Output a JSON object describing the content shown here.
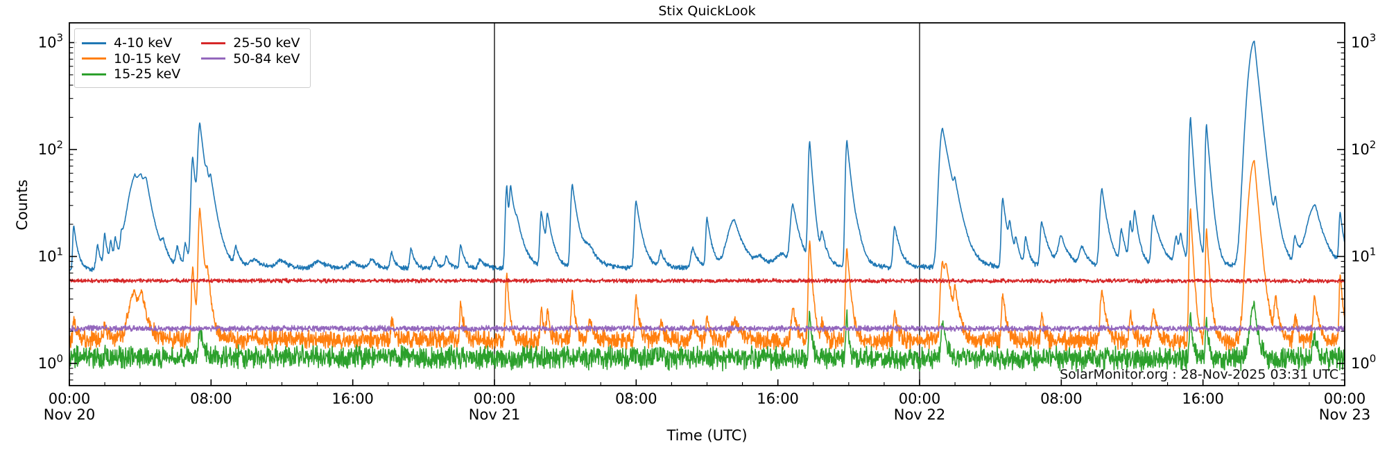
{
  "figure": {
    "title": "Stix QuickLook",
    "xlabel": "Time (UTC)",
    "ylabel": "Counts",
    "watermark": "SolarMonitor.org : 28-Nov-2025 03:31 UTC"
  },
  "legend": {
    "entries": [
      {
        "label": "4-10 keV",
        "color": "#1f77b4"
      },
      {
        "label": "10-15 keV",
        "color": "#ff7f0e"
      },
      {
        "label": "15-25 keV",
        "color": "#2ca02c"
      },
      {
        "label": "25-50 keV",
        "color": "#d62728"
      },
      {
        "label": "50-84 keV",
        "color": "#9467bd"
      }
    ]
  },
  "chart_data": {
    "type": "line",
    "title": "Stix QuickLook",
    "xlabel": "Time (UTC)",
    "ylabel": "Counts",
    "x_axis": {
      "start_hours": 0,
      "end_hours": 72,
      "minor_tick_hours": 2,
      "ticks": [
        {
          "t": 0,
          "label": "00:00",
          "date": "Nov 20"
        },
        {
          "t": 8,
          "label": "08:00"
        },
        {
          "t": 16,
          "label": "16:00"
        },
        {
          "t": 24,
          "label": "00:00",
          "date": "Nov 21"
        },
        {
          "t": 32,
          "label": "08:00"
        },
        {
          "t": 40,
          "label": "16:00"
        },
        {
          "t": 48,
          "label": "00:00",
          "date": "Nov 22"
        },
        {
          "t": 56,
          "label": "08:00"
        },
        {
          "t": 64,
          "label": "16:00"
        },
        {
          "t": 72,
          "label": "00:00",
          "date": "Nov 23"
        }
      ]
    },
    "y_axis": {
      "scale": "log",
      "min": 0.62,
      "max": 1530,
      "major_exponents": [
        0,
        1,
        2,
        3
      ],
      "mantissa_base": "10"
    },
    "day_separators_hours": [
      24,
      48
    ],
    "series": [
      {
        "name": "4-10 keV",
        "color": "#1f77b4",
        "baseline_start": 7.55,
        "baseline_end": 8.1,
        "noise_sigma": 0.011,
        "peaks": [
          [
            0.25,
            20,
            0.05,
            0.2
          ],
          [
            1.6,
            13,
            0.08,
            0.2
          ],
          [
            2.0,
            16,
            0.06,
            0.18
          ],
          [
            2.35,
            13,
            0.06,
            0.15
          ],
          [
            2.6,
            14,
            0.06,
            0.18
          ],
          [
            2.95,
            13,
            0.06,
            0.15
          ],
          [
            3.7,
            52,
            0.35,
            0.3
          ],
          [
            4.05,
            42,
            0.2,
            0.3
          ],
          [
            4.35,
            36,
            0.15,
            0.45
          ],
          [
            5.3,
            11,
            0.08,
            0.2
          ],
          [
            6.1,
            12,
            0.08,
            0.2
          ],
          [
            6.55,
            13,
            0.06,
            0.2
          ],
          [
            6.97,
            85,
            0.08,
            0.22
          ],
          [
            7.37,
            165,
            0.09,
            0.3
          ],
          [
            7.78,
            26,
            0.06,
            0.3
          ],
          [
            7.98,
            28,
            0.06,
            0.4
          ],
          [
            9.4,
            12,
            0.08,
            0.25
          ],
          [
            10.5,
            9.5,
            0.3,
            0.5
          ],
          [
            12.0,
            9.3,
            0.3,
            0.5
          ],
          [
            14.1,
            9.3,
            0.3,
            0.5
          ],
          [
            16.0,
            9,
            0.2,
            0.4
          ],
          [
            17.1,
            9.5,
            0.15,
            0.3
          ],
          [
            18.2,
            11,
            0.08,
            0.2
          ],
          [
            19.3,
            12,
            0.07,
            0.2
          ],
          [
            20.6,
            10,
            0.1,
            0.2
          ],
          [
            21.3,
            10,
            0.1,
            0.2
          ],
          [
            22.1,
            13,
            0.06,
            0.2
          ],
          [
            23.2,
            9.5,
            0.1,
            0.3
          ],
          [
            24.7,
            46,
            0.07,
            0.12
          ],
          [
            24.92,
            40,
            0.06,
            0.35
          ],
          [
            25.3,
            12,
            0.1,
            0.4
          ],
          [
            26.65,
            26,
            0.07,
            0.25
          ],
          [
            27.0,
            21,
            0.06,
            0.3
          ],
          [
            28.4,
            47,
            0.08,
            0.3
          ],
          [
            29.4,
            11.5,
            0.3,
            0.5
          ],
          [
            32.0,
            33,
            0.08,
            0.3
          ],
          [
            33.4,
            11,
            0.1,
            0.25
          ],
          [
            35.2,
            12,
            0.1,
            0.3
          ],
          [
            36.0,
            23,
            0.06,
            0.25
          ],
          [
            37.55,
            22,
            0.35,
            0.5
          ],
          [
            39.0,
            9.5,
            0.2,
            0.4
          ],
          [
            40.3,
            10.5,
            0.4,
            0.5
          ],
          [
            40.85,
            30,
            0.12,
            0.35
          ],
          [
            41.8,
            117,
            0.07,
            0.18
          ],
          [
            42.5,
            15,
            0.07,
            0.3
          ],
          [
            43.9,
            121,
            0.07,
            0.25
          ],
          [
            44.6,
            10.5,
            0.2,
            0.4
          ],
          [
            46.6,
            19,
            0.08,
            0.3
          ],
          [
            49.3,
            158,
            0.15,
            0.45
          ],
          [
            50.0,
            23,
            0.06,
            0.3
          ],
          [
            52.7,
            35,
            0.07,
            0.25
          ],
          [
            53.1,
            16,
            0.06,
            0.2
          ],
          [
            53.45,
            12.5,
            0.06,
            0.2
          ],
          [
            54.0,
            14.5,
            0.07,
            0.2
          ],
          [
            54.9,
            21,
            0.08,
            0.35
          ],
          [
            56.0,
            15,
            0.15,
            0.4
          ],
          [
            57.2,
            12,
            0.15,
            0.3
          ],
          [
            58.3,
            43,
            0.1,
            0.3
          ],
          [
            59.4,
            17,
            0.08,
            0.25
          ],
          [
            59.9,
            20,
            0.07,
            0.2
          ],
          [
            60.15,
            23,
            0.06,
            0.25
          ],
          [
            61.2,
            24,
            0.09,
            0.4
          ],
          [
            62.5,
            14.5,
            0.1,
            0.2
          ],
          [
            62.75,
            14,
            0.07,
            0.2
          ],
          [
            63.3,
            198,
            0.07,
            0.16
          ],
          [
            64.2,
            170,
            0.06,
            0.2
          ],
          [
            66.9,
            1030,
            0.28,
            0.27
          ],
          [
            68.1,
            24,
            0.07,
            0.3
          ],
          [
            69.2,
            14.5,
            0.08,
            0.25
          ],
          [
            70.35,
            30,
            0.4,
            0.45
          ],
          [
            71.75,
            25,
            0.06,
            0.2
          ]
        ]
      },
      {
        "name": "10-15 keV",
        "color": "#ff7f0e",
        "baseline_start": 1.68,
        "baseline_end": 1.62,
        "noise_sigma": 0.042,
        "peaks": [
          [
            0.25,
            2.6,
            0.05,
            0.15
          ],
          [
            2.0,
            2.4,
            0.05,
            0.15
          ],
          [
            3.7,
            4.6,
            0.3,
            0.3
          ],
          [
            4.1,
            3.8,
            0.15,
            0.3
          ],
          [
            6.97,
            8,
            0.06,
            0.15
          ],
          [
            7.37,
            28,
            0.07,
            0.2
          ],
          [
            7.8,
            5,
            0.06,
            0.2
          ],
          [
            18.2,
            2.6,
            0.05,
            0.15
          ],
          [
            22.1,
            3.6,
            0.05,
            0.15
          ],
          [
            24.7,
            7,
            0.06,
            0.12
          ],
          [
            26.65,
            3.3,
            0.05,
            0.12
          ],
          [
            27.0,
            3.2,
            0.05,
            0.12
          ],
          [
            28.4,
            4.7,
            0.06,
            0.15
          ],
          [
            29.4,
            2.5,
            0.1,
            0.2
          ],
          [
            32.0,
            4.2,
            0.06,
            0.15
          ],
          [
            33.4,
            2.4,
            0.06,
            0.15
          ],
          [
            35.2,
            2.6,
            0.06,
            0.15
          ],
          [
            36.0,
            2.9,
            0.05,
            0.15
          ],
          [
            37.6,
            2.5,
            0.2,
            0.3
          ],
          [
            40.85,
            3.3,
            0.08,
            0.2
          ],
          [
            41.8,
            14,
            0.06,
            0.14
          ],
          [
            42.5,
            2.4,
            0.06,
            0.15
          ],
          [
            43.9,
            12,
            0.06,
            0.18
          ],
          [
            46.6,
            3.0,
            0.06,
            0.15
          ],
          [
            49.3,
            9,
            0.1,
            0.3
          ],
          [
            49.5,
            5,
            0.06,
            0.3
          ],
          [
            50.0,
            4.2,
            0.05,
            0.2
          ],
          [
            52.7,
            4.5,
            0.06,
            0.18
          ],
          [
            54.9,
            2.8,
            0.06,
            0.15
          ],
          [
            58.3,
            5,
            0.08,
            0.2
          ],
          [
            59.9,
            3.0,
            0.06,
            0.15
          ],
          [
            61.2,
            3.3,
            0.07,
            0.2
          ],
          [
            63.3,
            28,
            0.06,
            0.13
          ],
          [
            64.2,
            18,
            0.05,
            0.15
          ],
          [
            66.9,
            79,
            0.25,
            0.22
          ],
          [
            68.1,
            4.1,
            0.06,
            0.2
          ],
          [
            69.2,
            2.8,
            0.06,
            0.15
          ],
          [
            70.3,
            4.3,
            0.07,
            0.2
          ],
          [
            71.75,
            7,
            0.05,
            0.15
          ]
        ]
      },
      {
        "name": "15-25 keV",
        "color": "#2ca02c",
        "baseline_start": 1.15,
        "baseline_end": 1.1,
        "noise_sigma": 0.05,
        "peaks": [
          [
            7.37,
            2.2,
            0.06,
            0.15
          ],
          [
            41.8,
            3.1,
            0.05,
            0.1
          ],
          [
            43.9,
            3.0,
            0.05,
            0.1
          ],
          [
            49.3,
            2.5,
            0.07,
            0.2
          ],
          [
            63.3,
            2.9,
            0.05,
            0.1
          ],
          [
            64.2,
            2.6,
            0.05,
            0.1
          ],
          [
            66.9,
            3.6,
            0.2,
            0.2
          ],
          [
            70.3,
            1.8,
            0.1,
            0.2
          ]
        ]
      },
      {
        "name": "25-50 keV",
        "color": "#d62728",
        "baseline_start": 5.95,
        "baseline_end": 5.9,
        "noise_sigma": 0.009,
        "peaks": []
      },
      {
        "name": "50-84 keV",
        "color": "#9467bd",
        "baseline_start": 2.12,
        "baseline_end": 2.12,
        "noise_sigma": 0.013,
        "peaks": []
      }
    ]
  }
}
